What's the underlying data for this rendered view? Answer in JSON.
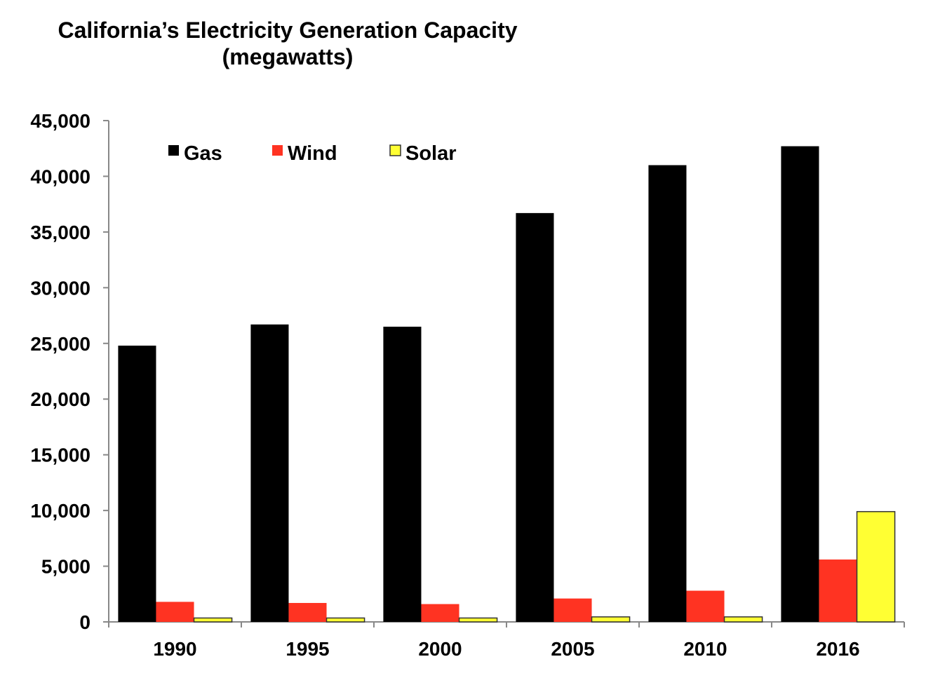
{
  "chart_data": {
    "type": "bar",
    "title": "California’s Electricity Generation Capacity",
    "subtitle": "(megawatts)",
    "xlabel": "",
    "ylabel": "",
    "categories": [
      "1990",
      "1995",
      "2000",
      "2005",
      "2010",
      "2016"
    ],
    "series": [
      {
        "name": "Gas",
        "color": "#000000",
        "values": [
          24800,
          26700,
          26500,
          36700,
          41000,
          42700
        ]
      },
      {
        "name": "Wind",
        "color": "#ff3322",
        "values": [
          1800,
          1700,
          1600,
          2100,
          2800,
          5600
        ]
      },
      {
        "name": "Solar",
        "color": "#ffff33",
        "values": [
          350,
          350,
          350,
          450,
          450,
          9900
        ]
      }
    ],
    "ylim": [
      0,
      45000
    ],
    "yticks": [
      "0",
      "5,000",
      "10,000",
      "15,000",
      "20,000",
      "25,000",
      "30,000",
      "35,000",
      "40,000",
      "45,000"
    ],
    "grid": false,
    "legend_position": "top-left"
  }
}
